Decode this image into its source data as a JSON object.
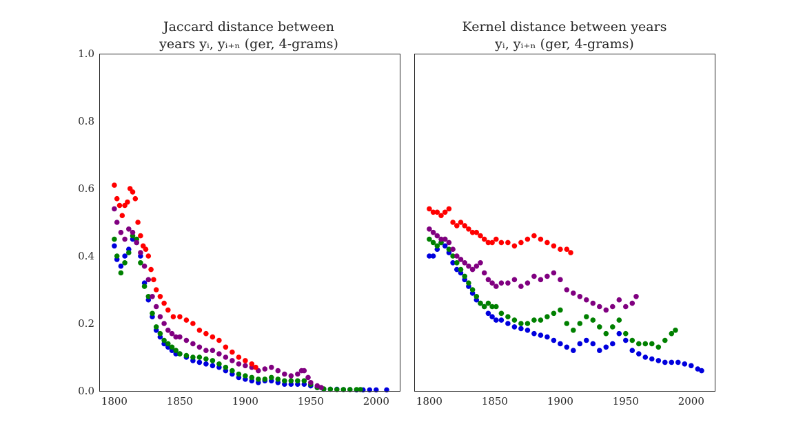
{
  "chart_data": [
    {
      "type": "scatter",
      "title_line1": "Jaccard distance between",
      "title_line2": "years yᵢ, yᵢ₊ₙ (ger, 4-grams)",
      "xlim": [
        1789,
        2018
      ],
      "ylim": [
        0,
        1
      ],
      "xticks": [
        "1800",
        "1850",
        "1900",
        "1950",
        "2000"
      ],
      "yticks": [
        "0.0",
        "0.2",
        "0.4",
        "0.6",
        "0.8",
        "1.0"
      ],
      "grid": false,
      "series": [
        {
          "color": "#0000dd",
          "x": [
            1800,
            1802,
            1805,
            1808,
            1811,
            1814,
            1817,
            1820,
            1823,
            1826,
            1829,
            1832,
            1835,
            1838,
            1841,
            1844,
            1847,
            1850,
            1855,
            1860,
            1865,
            1870,
            1875,
            1880,
            1885,
            1890,
            1895,
            1900,
            1905,
            1910,
            1915,
            1920,
            1925,
            1930,
            1935,
            1940,
            1945,
            1950,
            1955,
            1960,
            1965,
            1970,
            1975,
            1980,
            1985,
            1990,
            1995,
            2000,
            2008
          ],
          "y": [
            0.43,
            0.39,
            0.37,
            0.4,
            0.42,
            0.45,
            0.44,
            0.4,
            0.32,
            0.27,
            0.22,
            0.18,
            0.16,
            0.14,
            0.13,
            0.12,
            0.11,
            0.11,
            0.1,
            0.09,
            0.085,
            0.08,
            0.075,
            0.07,
            0.06,
            0.05,
            0.04,
            0.035,
            0.03,
            0.025,
            0.03,
            0.03,
            0.025,
            0.02,
            0.02,
            0.02,
            0.02,
            0.015,
            0.01,
            0.005,
            0.005,
            0.005,
            0.004,
            0.004,
            0.003,
            0.003,
            0.003,
            0.003,
            0.003
          ]
        },
        {
          "color": "#008000",
          "x": [
            1800,
            1802,
            1805,
            1808,
            1811,
            1814,
            1817,
            1820,
            1823,
            1826,
            1829,
            1832,
            1835,
            1838,
            1841,
            1844,
            1847,
            1850,
            1855,
            1860,
            1865,
            1870,
            1875,
            1880,
            1885,
            1890,
            1895,
            1900,
            1905,
            1910,
            1915,
            1920,
            1925,
            1930,
            1935,
            1940,
            1945,
            1950,
            1955,
            1960,
            1965,
            1970,
            1975,
            1980,
            1985,
            1988
          ],
          "y": [
            0.45,
            0.4,
            0.35,
            0.38,
            0.41,
            0.46,
            0.45,
            0.38,
            0.31,
            0.28,
            0.23,
            0.19,
            0.17,
            0.15,
            0.14,
            0.13,
            0.12,
            0.11,
            0.105,
            0.1,
            0.1,
            0.095,
            0.09,
            0.08,
            0.07,
            0.06,
            0.05,
            0.045,
            0.04,
            0.035,
            0.035,
            0.04,
            0.035,
            0.03,
            0.03,
            0.03,
            0.03,
            0.02,
            0.01,
            0.006,
            0.005,
            0.004,
            0.004,
            0.004,
            0.004,
            0.004
          ]
        },
        {
          "color": "#800080",
          "x": [
            1800,
            1802,
            1805,
            1808,
            1811,
            1814,
            1817,
            1820,
            1823,
            1826,
            1829,
            1832,
            1835,
            1838,
            1841,
            1844,
            1847,
            1850,
            1855,
            1860,
            1865,
            1870,
            1875,
            1880,
            1885,
            1890,
            1895,
            1900,
            1905,
            1910,
            1915,
            1920,
            1925,
            1930,
            1935,
            1940,
            1943,
            1945,
            1948,
            1950,
            1955,
            1958
          ],
          "y": [
            0.54,
            0.5,
            0.47,
            0.45,
            0.48,
            0.47,
            0.44,
            0.41,
            0.37,
            0.33,
            0.28,
            0.25,
            0.22,
            0.2,
            0.18,
            0.17,
            0.16,
            0.16,
            0.15,
            0.14,
            0.13,
            0.12,
            0.12,
            0.11,
            0.1,
            0.09,
            0.08,
            0.075,
            0.07,
            0.06,
            0.065,
            0.07,
            0.06,
            0.05,
            0.045,
            0.05,
            0.06,
            0.06,
            0.04,
            0.025,
            0.015,
            0.01
          ]
        },
        {
          "color": "#ff0000",
          "x": [
            1800,
            1802,
            1804,
            1806,
            1808,
            1810,
            1812,
            1814,
            1816,
            1818,
            1820,
            1822,
            1824,
            1826,
            1828,
            1830,
            1832,
            1835,
            1838,
            1841,
            1845,
            1850,
            1855,
            1860,
            1865,
            1870,
            1875,
            1880,
            1885,
            1890,
            1895,
            1900,
            1905,
            1908
          ],
          "y": [
            0.61,
            0.57,
            0.55,
            0.52,
            0.55,
            0.56,
            0.6,
            0.59,
            0.57,
            0.5,
            0.46,
            0.43,
            0.42,
            0.4,
            0.36,
            0.33,
            0.3,
            0.28,
            0.26,
            0.24,
            0.22,
            0.22,
            0.21,
            0.2,
            0.18,
            0.17,
            0.16,
            0.15,
            0.13,
            0.115,
            0.1,
            0.09,
            0.08,
            0.07
          ]
        }
      ]
    },
    {
      "type": "scatter",
      "title_line1": "Kernel distance between years",
      "title_line2": "yᵢ, yᵢ₊ₙ (ger, 4-grams)",
      "xlim": [
        1789,
        2018
      ],
      "ylim": [
        0,
        1
      ],
      "xticks": [
        "1800",
        "1850",
        "1900",
        "1950",
        "2000"
      ],
      "grid": false,
      "series": [
        {
          "color": "#0000dd",
          "x": [
            1800,
            1803,
            1806,
            1809,
            1812,
            1815,
            1818,
            1821,
            1824,
            1827,
            1830,
            1833,
            1836,
            1839,
            1842,
            1845,
            1848,
            1851,
            1855,
            1860,
            1865,
            1870,
            1875,
            1880,
            1885,
            1890,
            1895,
            1900,
            1905,
            1910,
            1915,
            1920,
            1925,
            1930,
            1935,
            1940,
            1945,
            1950,
            1955,
            1960,
            1965,
            1970,
            1975,
            1980,
            1985,
            1990,
            1995,
            2000,
            2005,
            2008
          ],
          "y": [
            0.4,
            0.4,
            0.42,
            0.44,
            0.43,
            0.41,
            0.38,
            0.36,
            0.35,
            0.33,
            0.31,
            0.29,
            0.27,
            0.26,
            0.25,
            0.23,
            0.22,
            0.21,
            0.21,
            0.2,
            0.19,
            0.185,
            0.18,
            0.17,
            0.165,
            0.16,
            0.15,
            0.14,
            0.13,
            0.12,
            0.14,
            0.15,
            0.14,
            0.12,
            0.13,
            0.14,
            0.17,
            0.15,
            0.12,
            0.11,
            0.1,
            0.095,
            0.09,
            0.085,
            0.085,
            0.085,
            0.08,
            0.075,
            0.065,
            0.06
          ]
        },
        {
          "color": "#008000",
          "x": [
            1800,
            1803,
            1806,
            1809,
            1812,
            1815,
            1818,
            1821,
            1824,
            1827,
            1830,
            1833,
            1836,
            1839,
            1842,
            1845,
            1848,
            1851,
            1855,
            1860,
            1865,
            1870,
            1875,
            1880,
            1885,
            1890,
            1895,
            1900,
            1905,
            1910,
            1915,
            1920,
            1925,
            1930,
            1935,
            1940,
            1945,
            1950,
            1955,
            1960,
            1965,
            1970,
            1975,
            1980,
            1985,
            1988
          ],
          "y": [
            0.45,
            0.44,
            0.43,
            0.44,
            0.45,
            0.42,
            0.4,
            0.38,
            0.36,
            0.34,
            0.32,
            0.3,
            0.28,
            0.26,
            0.25,
            0.26,
            0.25,
            0.25,
            0.23,
            0.22,
            0.21,
            0.2,
            0.2,
            0.21,
            0.21,
            0.22,
            0.23,
            0.24,
            0.2,
            0.18,
            0.2,
            0.22,
            0.21,
            0.19,
            0.17,
            0.19,
            0.21,
            0.17,
            0.15,
            0.14,
            0.14,
            0.14,
            0.13,
            0.15,
            0.17,
            0.18
          ]
        },
        {
          "color": "#800080",
          "x": [
            1800,
            1803,
            1806,
            1809,
            1812,
            1815,
            1818,
            1821,
            1824,
            1827,
            1830,
            1833,
            1836,
            1839,
            1842,
            1845,
            1848,
            1851,
            1855,
            1860,
            1865,
            1870,
            1875,
            1880,
            1885,
            1890,
            1895,
            1900,
            1905,
            1910,
            1915,
            1920,
            1925,
            1930,
            1935,
            1940,
            1945,
            1950,
            1955,
            1958
          ],
          "y": [
            0.48,
            0.47,
            0.46,
            0.45,
            0.45,
            0.44,
            0.42,
            0.4,
            0.39,
            0.38,
            0.37,
            0.36,
            0.37,
            0.38,
            0.35,
            0.33,
            0.32,
            0.31,
            0.32,
            0.32,
            0.33,
            0.31,
            0.32,
            0.34,
            0.33,
            0.34,
            0.35,
            0.33,
            0.3,
            0.29,
            0.28,
            0.27,
            0.26,
            0.25,
            0.24,
            0.25,
            0.27,
            0.25,
            0.26,
            0.28
          ]
        },
        {
          "color": "#ff0000",
          "x": [
            1800,
            1803,
            1806,
            1809,
            1812,
            1815,
            1818,
            1821,
            1824,
            1827,
            1830,
            1833,
            1836,
            1839,
            1842,
            1845,
            1848,
            1851,
            1855,
            1860,
            1865,
            1870,
            1875,
            1880,
            1885,
            1890,
            1895,
            1900,
            1905,
            1908
          ],
          "y": [
            0.54,
            0.53,
            0.53,
            0.52,
            0.53,
            0.54,
            0.5,
            0.49,
            0.5,
            0.49,
            0.48,
            0.47,
            0.47,
            0.46,
            0.45,
            0.44,
            0.44,
            0.45,
            0.44,
            0.44,
            0.43,
            0.44,
            0.45,
            0.46,
            0.45,
            0.44,
            0.43,
            0.42,
            0.42,
            0.41
          ]
        }
      ]
    }
  ]
}
